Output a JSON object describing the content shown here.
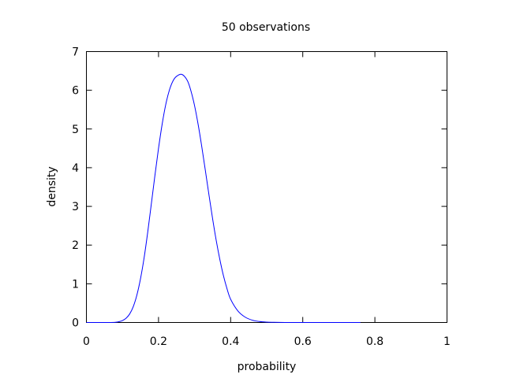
{
  "chart_data": {
    "type": "line",
    "title": "50 observations",
    "xlabel": "probability",
    "ylabel": "density",
    "xlim": [
      0,
      1
    ],
    "ylim": [
      0,
      7
    ],
    "x_ticks": [
      0,
      0.2,
      0.4,
      0.6,
      0.8,
      1
    ],
    "x_tick_labels": [
      "0",
      "0.2",
      "0.4",
      "0.6",
      "0.8",
      "1"
    ],
    "y_ticks": [
      0,
      1,
      2,
      3,
      4,
      5,
      6,
      7
    ],
    "y_tick_labels": [
      "0",
      "1",
      "2",
      "3",
      "4",
      "5",
      "6",
      "7"
    ],
    "grid": false,
    "legend": "none",
    "series": [
      {
        "color": "#0000ff",
        "x": [
          0.0,
          0.04,
          0.06,
          0.08,
          0.09,
          0.1,
          0.11,
          0.12,
          0.13,
          0.14,
          0.15,
          0.16,
          0.17,
          0.18,
          0.19,
          0.2,
          0.21,
          0.22,
          0.23,
          0.24,
          0.25,
          0.265,
          0.28,
          0.29,
          0.3,
          0.31,
          0.32,
          0.33,
          0.34,
          0.35,
          0.36,
          0.37,
          0.38,
          0.39,
          0.4,
          0.42,
          0.44,
          0.46,
          0.48,
          0.5,
          0.52,
          0.55,
          0.6,
          0.7,
          0.76
        ],
        "y": [
          0.0,
          0.0,
          0.0,
          0.005,
          0.02,
          0.05,
          0.11,
          0.22,
          0.41,
          0.71,
          1.13,
          1.67,
          2.33,
          3.06,
          3.8,
          4.5,
          5.12,
          5.63,
          6.0,
          6.24,
          6.36,
          6.41,
          6.25,
          5.98,
          5.6,
          5.11,
          4.54,
          3.92,
          3.29,
          2.68,
          2.12,
          1.63,
          1.21,
          0.87,
          0.6,
          0.3,
          0.14,
          0.06,
          0.025,
          0.01,
          0.004,
          0.001,
          0.0,
          0.0,
          0.0
        ]
      }
    ]
  }
}
